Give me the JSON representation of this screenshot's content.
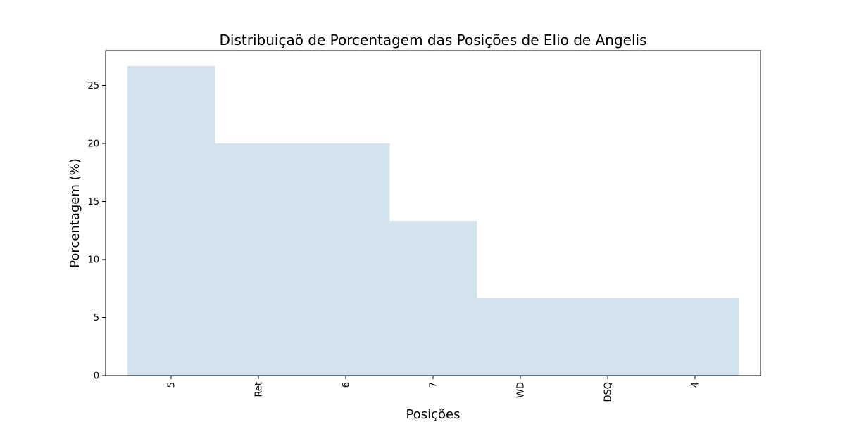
{
  "chart_data": {
    "type": "area",
    "title": "Distribuiçaõ de Porcentagem das Posições de Elio de Angelis",
    "xlabel": "Posições",
    "ylabel": "Porcentagem (%)",
    "categories": [
      "5",
      "Ret",
      "6",
      "7",
      "WD",
      "DSQ",
      "4"
    ],
    "values": [
      26.67,
      20.0,
      20.0,
      13.33,
      6.67,
      6.67,
      6.67
    ],
    "ylim": [
      0,
      28
    ],
    "yticks": [
      0,
      5,
      10,
      15,
      20,
      25
    ],
    "grid": false,
    "step": "mid",
    "fill_color": "#d2e3ee"
  }
}
